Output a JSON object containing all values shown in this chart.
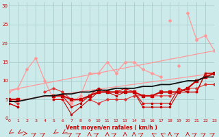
{
  "x": [
    0,
    1,
    2,
    3,
    4,
    5,
    6,
    7,
    8,
    9,
    10,
    11,
    12,
    13,
    14,
    15,
    16,
    17,
    18,
    19,
    20,
    21,
    22,
    23
  ],
  "line_upper_trend": {
    "x": [
      0,
      23
    ],
    "y": [
      7.5,
      18
    ]
  },
  "line_lower_trend": {
    "x": [
      0,
      23
    ],
    "y": [
      4.5,
      12
    ]
  },
  "line_pink_wavy": [
    7,
    8,
    13,
    16,
    10,
    5,
    5,
    4,
    6,
    12,
    12,
    15,
    12,
    15,
    15,
    13,
    12,
    11,
    null,
    14,
    null,
    21,
    22,
    18
  ],
  "line_pink_upper": [
    null,
    null,
    null,
    null,
    null,
    null,
    null,
    null,
    null,
    null,
    null,
    null,
    null,
    null,
    null,
    null,
    null,
    null,
    26,
    null,
    28,
    21,
    null,
    null
  ],
  "line_dark_smooth": [
    4.5,
    4.5,
    5,
    5.5,
    6,
    6,
    6.5,
    6.5,
    7,
    7,
    7.5,
    7.5,
    8,
    8,
    8,
    8.5,
    8.5,
    9,
    9,
    9.5,
    10,
    10,
    11,
    11
  ],
  "line_red_jagged1": [
    4,
    3,
    null,
    null,
    null,
    6,
    6,
    3,
    4,
    6,
    8,
    7,
    7,
    8,
    7,
    4,
    4,
    4,
    4,
    8,
    7,
    7,
    12,
    12
  ],
  "line_red_jagged2": [
    5,
    4,
    null,
    null,
    7,
    8,
    7,
    5,
    null,
    5,
    4,
    5,
    5,
    5,
    6,
    6,
    6,
    6,
    6,
    7,
    8,
    8,
    9,
    9
  ],
  "line_red_flat": [
    5,
    5,
    null,
    null,
    null,
    6,
    6,
    5,
    5,
    6,
    7,
    7,
    7,
    7,
    7,
    6,
    6,
    7,
    7,
    7,
    8,
    10,
    11,
    12
  ],
  "line_red_low": [
    4,
    3,
    null,
    null,
    null,
    5,
    5,
    1,
    3,
    5,
    7,
    7,
    6,
    7,
    7,
    3,
    3,
    3,
    3,
    7,
    7,
    7,
    12,
    12
  ],
  "background_color": "#cceaea",
  "grid_color": "#aacccc",
  "line_colors": {
    "light_pink": "#ff9999",
    "dark_red": "#cc0000",
    "medium_red": "#dd3333",
    "black_line": "#111111"
  },
  "xlabel": "Vent moyen/en rafales ( km/h )",
  "yticks": [
    0,
    5,
    10,
    15,
    20,
    25,
    30
  ],
  "xticks": [
    0,
    1,
    2,
    3,
    4,
    5,
    6,
    7,
    8,
    9,
    10,
    11,
    12,
    13,
    14,
    15,
    16,
    17,
    18,
    19,
    20,
    21,
    22,
    23
  ],
  "xlim": [
    0,
    23
  ],
  "ylim": [
    0,
    31
  ],
  "arrows": [
    [
      0,
      225
    ],
    [
      1,
      225
    ],
    [
      2,
      90
    ],
    [
      3,
      45
    ],
    [
      4,
      45
    ],
    [
      5,
      225
    ],
    [
      6,
      225
    ],
    [
      7,
      45
    ],
    [
      8,
      45
    ],
    [
      9,
      0
    ],
    [
      10,
      45
    ],
    [
      11,
      0
    ],
    [
      12,
      45
    ],
    [
      13,
      0
    ],
    [
      14,
      0
    ],
    [
      15,
      45
    ],
    [
      16,
      315
    ],
    [
      17,
      315
    ],
    [
      18,
      0
    ],
    [
      19,
      45
    ],
    [
      20,
      0
    ],
    [
      21,
      45
    ],
    [
      22,
      45
    ],
    [
      23,
      45
    ]
  ]
}
